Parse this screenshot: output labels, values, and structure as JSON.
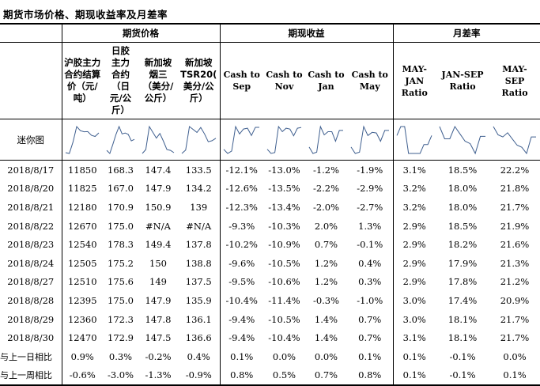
{
  "title": "期货市场价格、期现收益率及月差率",
  "groups": {
    "futures": "期货价格",
    "basis": "期现收益",
    "spread": "月差率"
  },
  "headers": {
    "c1": [
      "沪胶主力",
      "合约结算",
      "价（元/",
      "吨）"
    ],
    "c2": [
      "日胶",
      "主力",
      "合约",
      "（日",
      "元/公",
      "斤）"
    ],
    "c3": [
      "新加坡",
      "烟三",
      "（美分/",
      "公斤）"
    ],
    "c4": [
      "新加坡",
      "TSR20(",
      "美分/公",
      "斤）"
    ],
    "c5": [
      "Cash to",
      "Sep"
    ],
    "c6": [
      "Cash to",
      "Nov"
    ],
    "c7": [
      "Cash to",
      "Jan"
    ],
    "c8": [
      "Cash to",
      "May"
    ],
    "c9": [
      "MAY-",
      "JAN",
      "Ratio"
    ],
    "c10": [
      "JAN-SEP",
      "Ratio"
    ],
    "c11": [
      "MAY-",
      "SEP",
      "Ratio"
    ]
  },
  "sparkline_label": "迷你图",
  "rows": [
    [
      "2018/8/17",
      "11850",
      "168.3",
      "147.4",
      "133.5",
      "-12.1%",
      "-13.0%",
      "-1.2%",
      "-1.9%",
      "3.1%",
      "18.5%",
      "22.2%"
    ],
    [
      "2018/8/20",
      "11825",
      "167.0",
      "147.9",
      "134.2",
      "-12.6%",
      "-13.5%",
      "-2.2%",
      "-2.9%",
      "3.2%",
      "18.0%",
      "21.8%"
    ],
    [
      "2018/8/21",
      "12180",
      "170.9",
      "150.9",
      "139",
      "-12.3%",
      "-13.4%",
      "-2.0%",
      "-2.7%",
      "3.2%",
      "18.0%",
      "21.7%"
    ],
    [
      "2018/8/22",
      "12670",
      "175.0",
      "#N/A",
      "#N/A",
      "-9.3%",
      "-10.3%",
      "2.0%",
      "1.3%",
      "2.9%",
      "18.5%",
      "21.9%"
    ],
    [
      "2018/8/23",
      "12540",
      "178.3",
      "149.4",
      "137.8",
      "-10.2%",
      "-10.9%",
      "0.7%",
      "-0.1%",
      "2.9%",
      "18.2%",
      "21.6%"
    ],
    [
      "2018/8/24",
      "12505",
      "175.2",
      "150",
      "138.8",
      "-9.6%",
      "-10.5%",
      "1.2%",
      "0.4%",
      "2.9%",
      "17.9%",
      "21.3%"
    ],
    [
      "2018/8/27",
      "12510",
      "175.6",
      "149",
      "137.5",
      "-9.5%",
      "-10.6%",
      "1.2%",
      "0.3%",
      "2.9%",
      "17.8%",
      "21.2%"
    ],
    [
      "2018/8/28",
      "12395",
      "175.0",
      "147.9",
      "135.9",
      "-10.4%",
      "-11.4%",
      "-0.3%",
      "-1.0%",
      "3.0%",
      "17.4%",
      "20.9%"
    ],
    [
      "2018/8/29",
      "12360",
      "172.3",
      "147.8",
      "136.1",
      "-9.4%",
      "-10.5%",
      "1.4%",
      "0.7%",
      "3.0%",
      "18.1%",
      "21.7%"
    ],
    [
      "2018/8/30",
      "12470",
      "172.9",
      "147.5",
      "136.6",
      "-9.4%",
      "-10.4%",
      "1.4%",
      "0.7%",
      "3.1%",
      "18.1%",
      "21.7%"
    ]
  ],
  "change_rows": [
    [
      "与上一日相比",
      "0.9%",
      "0.3%",
      "-0.2%",
      "0.4%",
      "0.1%",
      "0.0%",
      "0.0%",
      "0.1%",
      "0.1%",
      "-0.1%",
      "0.0%"
    ],
    [
      "与上一周相比",
      "-0.6%",
      "-3.0%",
      "-1.3%",
      "-0.9%",
      "0.8%",
      "0.5%",
      "0.7%",
      "0.8%",
      "0.1%",
      "-0.1%",
      "0.1%"
    ]
  ],
  "colors": {
    "sparkline": "#3f5f8f",
    "border": "#000000"
  }
}
